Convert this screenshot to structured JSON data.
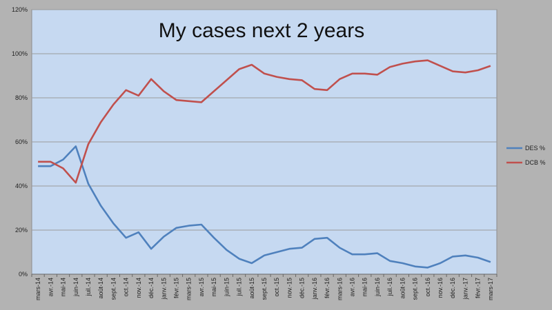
{
  "chart_data": {
    "type": "line",
    "title": "My cases next 2 years",
    "xlabel": "",
    "ylabel": "",
    "ylim": [
      0,
      120
    ],
    "yticks": [
      "0%",
      "20%",
      "40%",
      "60%",
      "80%",
      "100%",
      "120%"
    ],
    "grid": true,
    "legend_position": "right",
    "colors": {
      "plot_bg": "#c6d9f1",
      "outer_bg": "#b3b3b3",
      "grid": "#9a9a9a"
    },
    "categories": [
      "mars-14",
      "avr.-14",
      "mai-14",
      "juin-14",
      "juil.-14",
      "août-14",
      "sept.-14",
      "oct.-14",
      "nov.-14",
      "déc.-14",
      "janv.-15",
      "févr.-15",
      "mars-15",
      "avr.-15",
      "mai-15",
      "juin-15",
      "juil.-15",
      "août-15",
      "sept.-15",
      "oct.-15",
      "nov.-15",
      "déc.-15",
      "janv.-16",
      "févr.-16",
      "mars-16",
      "avr.-16",
      "mai-16",
      "juin-16",
      "juil.-16",
      "août-16",
      "sept.-16",
      "oct.-16",
      "nov.-16",
      "déc.-16",
      "janv.-17",
      "févr.-17",
      "mars-17"
    ],
    "series": [
      {
        "name": "DES %",
        "color": "#4f81bd",
        "values": [
          49,
          49,
          52,
          58,
          41,
          31,
          23,
          16.5,
          19,
          11.5,
          17,
          21,
          22,
          22.5,
          16.5,
          11,
          7,
          5,
          8.5,
          10,
          11.5,
          12,
          16,
          16.5,
          12,
          9,
          9,
          9.5,
          6,
          5,
          3.5,
          3,
          5,
          8,
          8.5,
          7.5,
          5.5
        ]
      },
      {
        "name": "DCB %",
        "color": "#c0504d",
        "values": [
          51,
          51,
          48,
          41.5,
          59,
          69,
          77,
          83.5,
          81,
          88.5,
          83,
          79,
          78.5,
          78,
          83,
          88,
          93,
          95,
          91,
          89.5,
          88.5,
          88,
          84,
          83.5,
          88.5,
          91,
          91,
          90.5,
          94,
          95.5,
          96.5,
          97,
          94.5,
          92,
          91.5,
          92.5,
          94.5
        ]
      }
    ]
  }
}
